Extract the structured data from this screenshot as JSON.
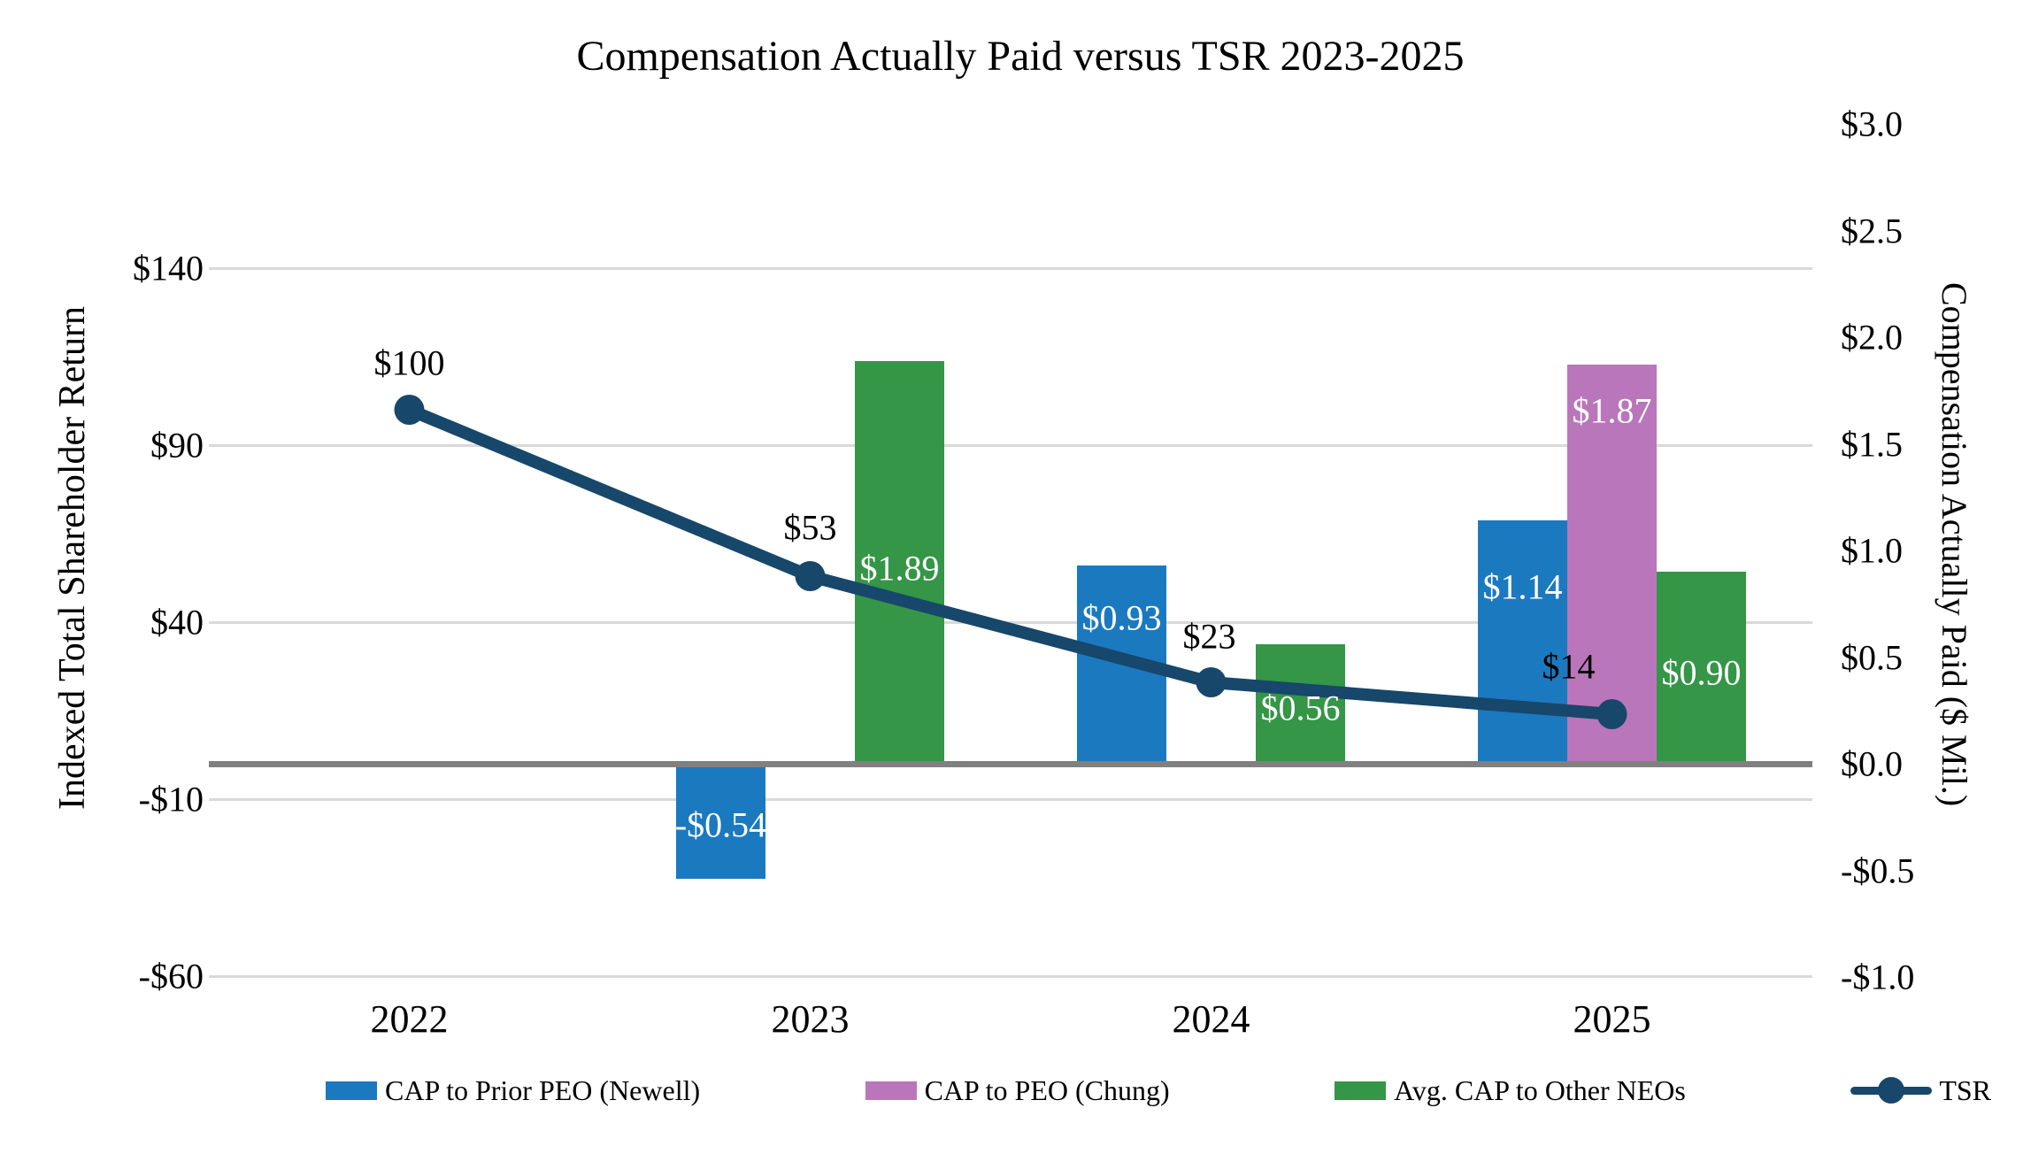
{
  "title": "Compensation Actually Paid versus TSR 2023-2025",
  "left_axis": {
    "title": "Indexed Total Shareholder Return",
    "tick_labels": [
      "$140",
      "$90",
      "$40",
      "-$10",
      "-$60"
    ],
    "tick_values": [
      140,
      90,
      40,
      -10,
      -60
    ]
  },
  "right_axis": {
    "title": "Compensation Actually Paid ($ Mil.)",
    "tick_labels": [
      "$3.0",
      "$2.5",
      "$2.0",
      "$1.5",
      "$1.0",
      "$0.5",
      "$0.0",
      "-$0.5",
      "-$1.0"
    ],
    "tick_values": [
      3.0,
      2.5,
      2.0,
      1.5,
      1.0,
      0.5,
      0.0,
      -0.5,
      -1.0
    ]
  },
  "x_axis": {
    "categories": [
      "2022",
      "2023",
      "2024",
      "2025"
    ]
  },
  "colors": {
    "blue_bar": "#1b79bf",
    "pink_bar": "#ba76ba",
    "green_bar": "#349646",
    "tsr_line": "#17476b",
    "gridline": "#d9d9d9",
    "zero_line": "#808080"
  },
  "chart_data": {
    "type": "combo-bar-line",
    "title": "Compensation Actually Paid versus TSR 2023-2025",
    "categories": [
      "2022",
      "2023",
      "2024",
      "2025"
    ],
    "ylabel_left": "Indexed Total Shareholder Return",
    "ylabel_right": "Compensation Actually Paid ($ Mil.)",
    "left_ylim": [
      -60,
      140
    ],
    "right_ylim": [
      -1.0,
      3.0
    ],
    "grid": "horizontal",
    "legend_position": "bottom",
    "series": [
      {
        "name": "CAP to Prior PEO (Newell)",
        "type": "bar",
        "axis": "right",
        "color": "#1b79bf",
        "values": [
          null,
          -0.54,
          0.93,
          1.14
        ],
        "labels": [
          null,
          "-$0.54",
          "$0.93",
          "$1.14"
        ]
      },
      {
        "name": "CAP to PEO (Chung)",
        "type": "bar",
        "axis": "right",
        "color": "#ba76ba",
        "values": [
          null,
          null,
          null,
          1.87
        ],
        "labels": [
          null,
          null,
          null,
          "$1.87"
        ]
      },
      {
        "name": "Avg. CAP to Other NEOs",
        "type": "bar",
        "axis": "right",
        "color": "#349646",
        "values": [
          null,
          1.89,
          0.56,
          0.9
        ],
        "labels": [
          null,
          "$1.89",
          "$0.56",
          "$0.90"
        ]
      },
      {
        "name": "TSR",
        "type": "line",
        "axis": "left",
        "color": "#17476b",
        "values": [
          100,
          53,
          23,
          14
        ],
        "labels": [
          "$100",
          "$53",
          "$23",
          "$14"
        ]
      }
    ]
  },
  "legend": {
    "items": [
      "CAP to Prior PEO (Newell)",
      "CAP to PEO (Chung)",
      "Avg. CAP to Other NEOs",
      "TSR"
    ]
  }
}
